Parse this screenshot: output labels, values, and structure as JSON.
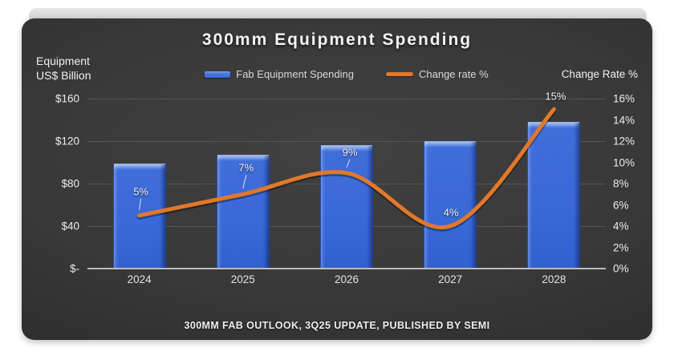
{
  "card": {
    "title": "300mm Equipment Spending",
    "footer": "300MM FAB OUTLOOK, 3Q25 UPDATE, PUBLISHED BY SEMI"
  },
  "axes": {
    "left_title_line1": "Equipment",
    "left_title_line2": "US$ Billion",
    "right_title": "Change Rate %",
    "left_ticks": [
      "$160",
      "$120",
      "$80",
      "$40",
      "$-"
    ],
    "right_ticks": [
      "16%",
      "14%",
      "12%",
      "10%",
      "8%",
      "6%",
      "4%",
      "2%",
      "0%"
    ]
  },
  "legend": [
    {
      "label": "Fab Equipment Spending",
      "type": "bar",
      "color": "#3a69d8"
    },
    {
      "label": "Change rate %",
      "type": "line",
      "color": "#e1782a"
    }
  ],
  "colors": {
    "bar_blue": "#3a69d8",
    "bar_highlight": "#84a6ef",
    "line_orange": "#e1782a",
    "card_background": "#383838",
    "gridline": "#565656",
    "baseline": "#bcbcbc",
    "text": "#ececec"
  },
  "chart_data": {
    "type": "bar",
    "title": "300mm Equipment Spending",
    "categories": [
      "2024",
      "2025",
      "2026",
      "2027",
      "2028"
    ],
    "series": [
      {
        "name": "Fab Equipment Spending",
        "type": "bar",
        "axis": "left",
        "unit": "US$ Billion",
        "values": [
          99,
          107,
          116,
          120,
          138
        ]
      },
      {
        "name": "Change rate %",
        "type": "line",
        "axis": "right",
        "unit": "%",
        "values": [
          5,
          7,
          9,
          4,
          15
        ],
        "point_labels": [
          "5%",
          "7%",
          "9%",
          "4%",
          "15%"
        ],
        "smooth": true
      }
    ],
    "left_axis": {
      "label": "Equipment US$ Billion",
      "min": 0,
      "max": 160,
      "tick_step": 40
    },
    "right_axis": {
      "label": "Change Rate %",
      "min": 0,
      "max": 16,
      "tick_step": 2
    },
    "grid": true,
    "legend_position": "top",
    "source_note": "300MM FAB OUTLOOK, 3Q25 UPDATE, PUBLISHED BY SEMI"
  }
}
